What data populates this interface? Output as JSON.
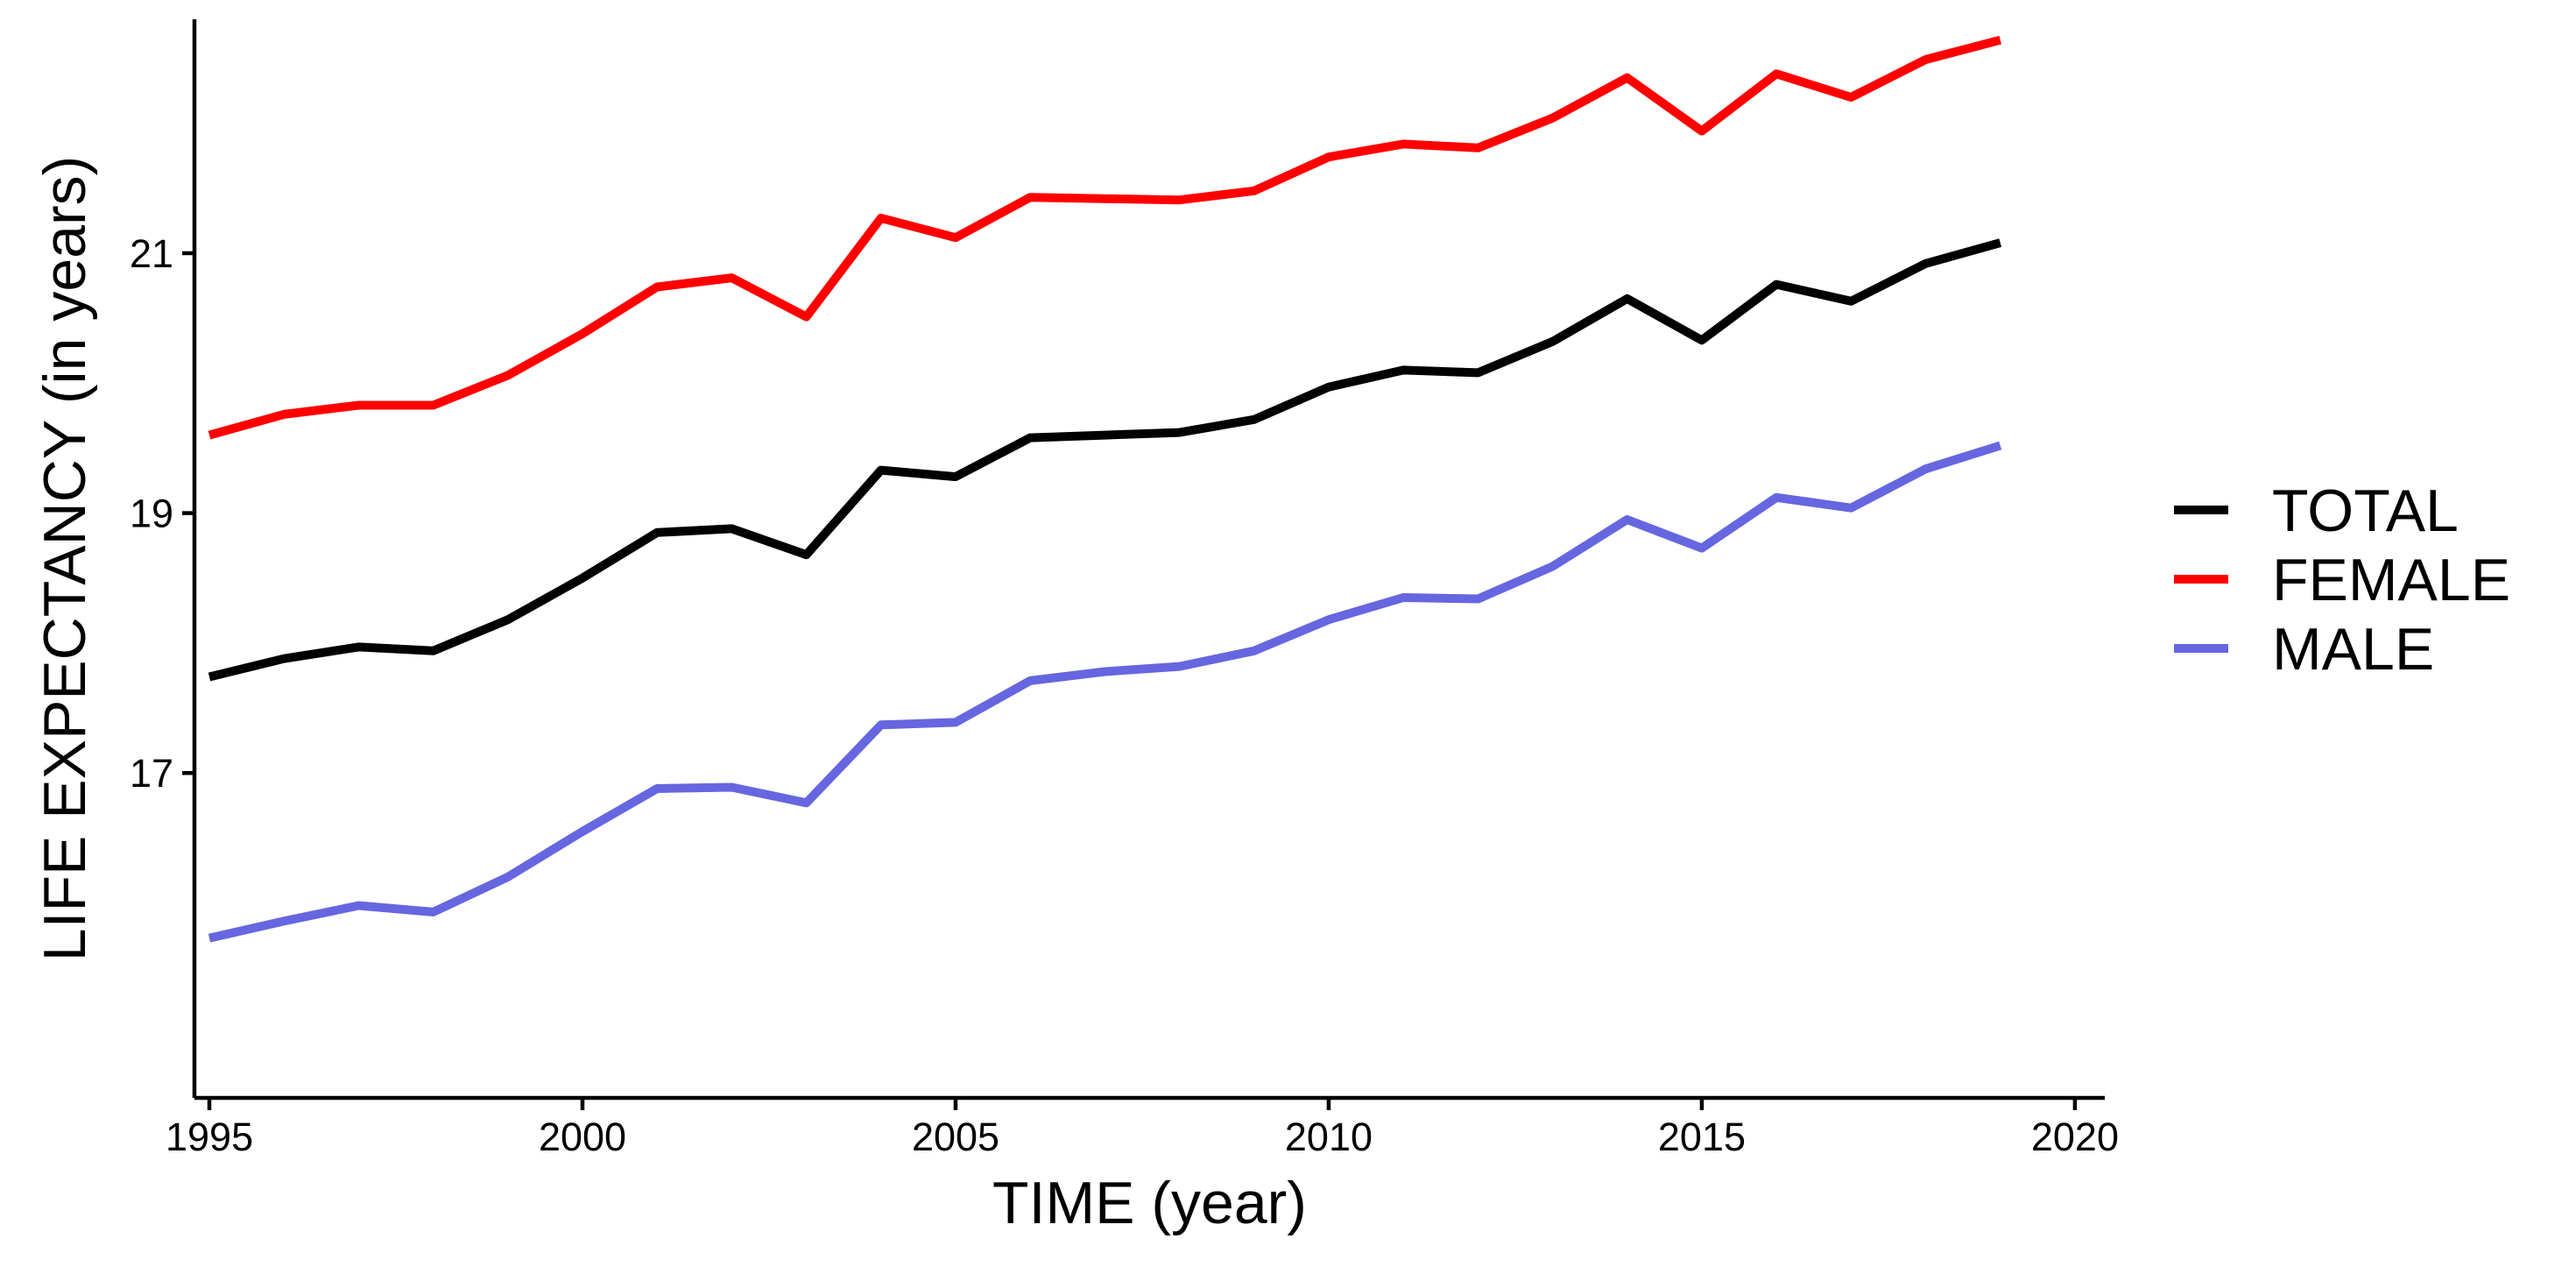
{
  "chart_data": {
    "type": "line",
    "xlabel": "TIME (year)",
    "ylabel": "LIFE EXPECTANCY (in years)",
    "xlim": [
      1994.8,
      2020.4
    ],
    "ylim": [
      14.5,
      22.8
    ],
    "xticks": [
      1995,
      2000,
      2005,
      2010,
      2015,
      2020
    ],
    "yticks": [
      17,
      19,
      21
    ],
    "grid": false,
    "legend_position": "right",
    "x": [
      1995,
      1996,
      1997,
      1998,
      1999,
      2000,
      2001,
      2002,
      2003,
      2004,
      2005,
      2006,
      2007,
      2008,
      2009,
      2010,
      2011,
      2012,
      2013,
      2014,
      2015,
      2016,
      2017,
      2018,
      2019
    ],
    "series": [
      {
        "name": "TOTAL",
        "color": "#000000",
        "values": [
          17.74,
          17.88,
          17.97,
          17.94,
          18.18,
          18.5,
          18.85,
          18.88,
          18.68,
          19.33,
          19.28,
          19.58,
          19.6,
          19.62,
          19.72,
          19.97,
          20.1,
          20.08,
          20.32,
          20.65,
          20.33,
          20.76,
          20.63,
          20.92,
          21.08
        ]
      },
      {
        "name": "FEMALE",
        "color": "#ff0000",
        "values": [
          19.6,
          19.76,
          19.83,
          19.83,
          20.06,
          20.38,
          20.74,
          20.81,
          20.51,
          21.27,
          21.12,
          21.43,
          21.42,
          21.41,
          21.48,
          21.74,
          21.84,
          21.81,
          22.04,
          22.35,
          21.94,
          22.38,
          22.2,
          22.49,
          22.64
        ]
      },
      {
        "name": "MALE",
        "color": "#6666e0",
        "values": [
          15.73,
          15.86,
          15.98,
          15.93,
          16.2,
          16.55,
          16.88,
          16.89,
          16.77,
          17.37,
          17.39,
          17.71,
          17.78,
          17.82,
          17.94,
          18.18,
          18.35,
          18.34,
          18.59,
          18.95,
          18.73,
          19.12,
          19.04,
          19.34,
          19.52
        ]
      }
    ]
  }
}
